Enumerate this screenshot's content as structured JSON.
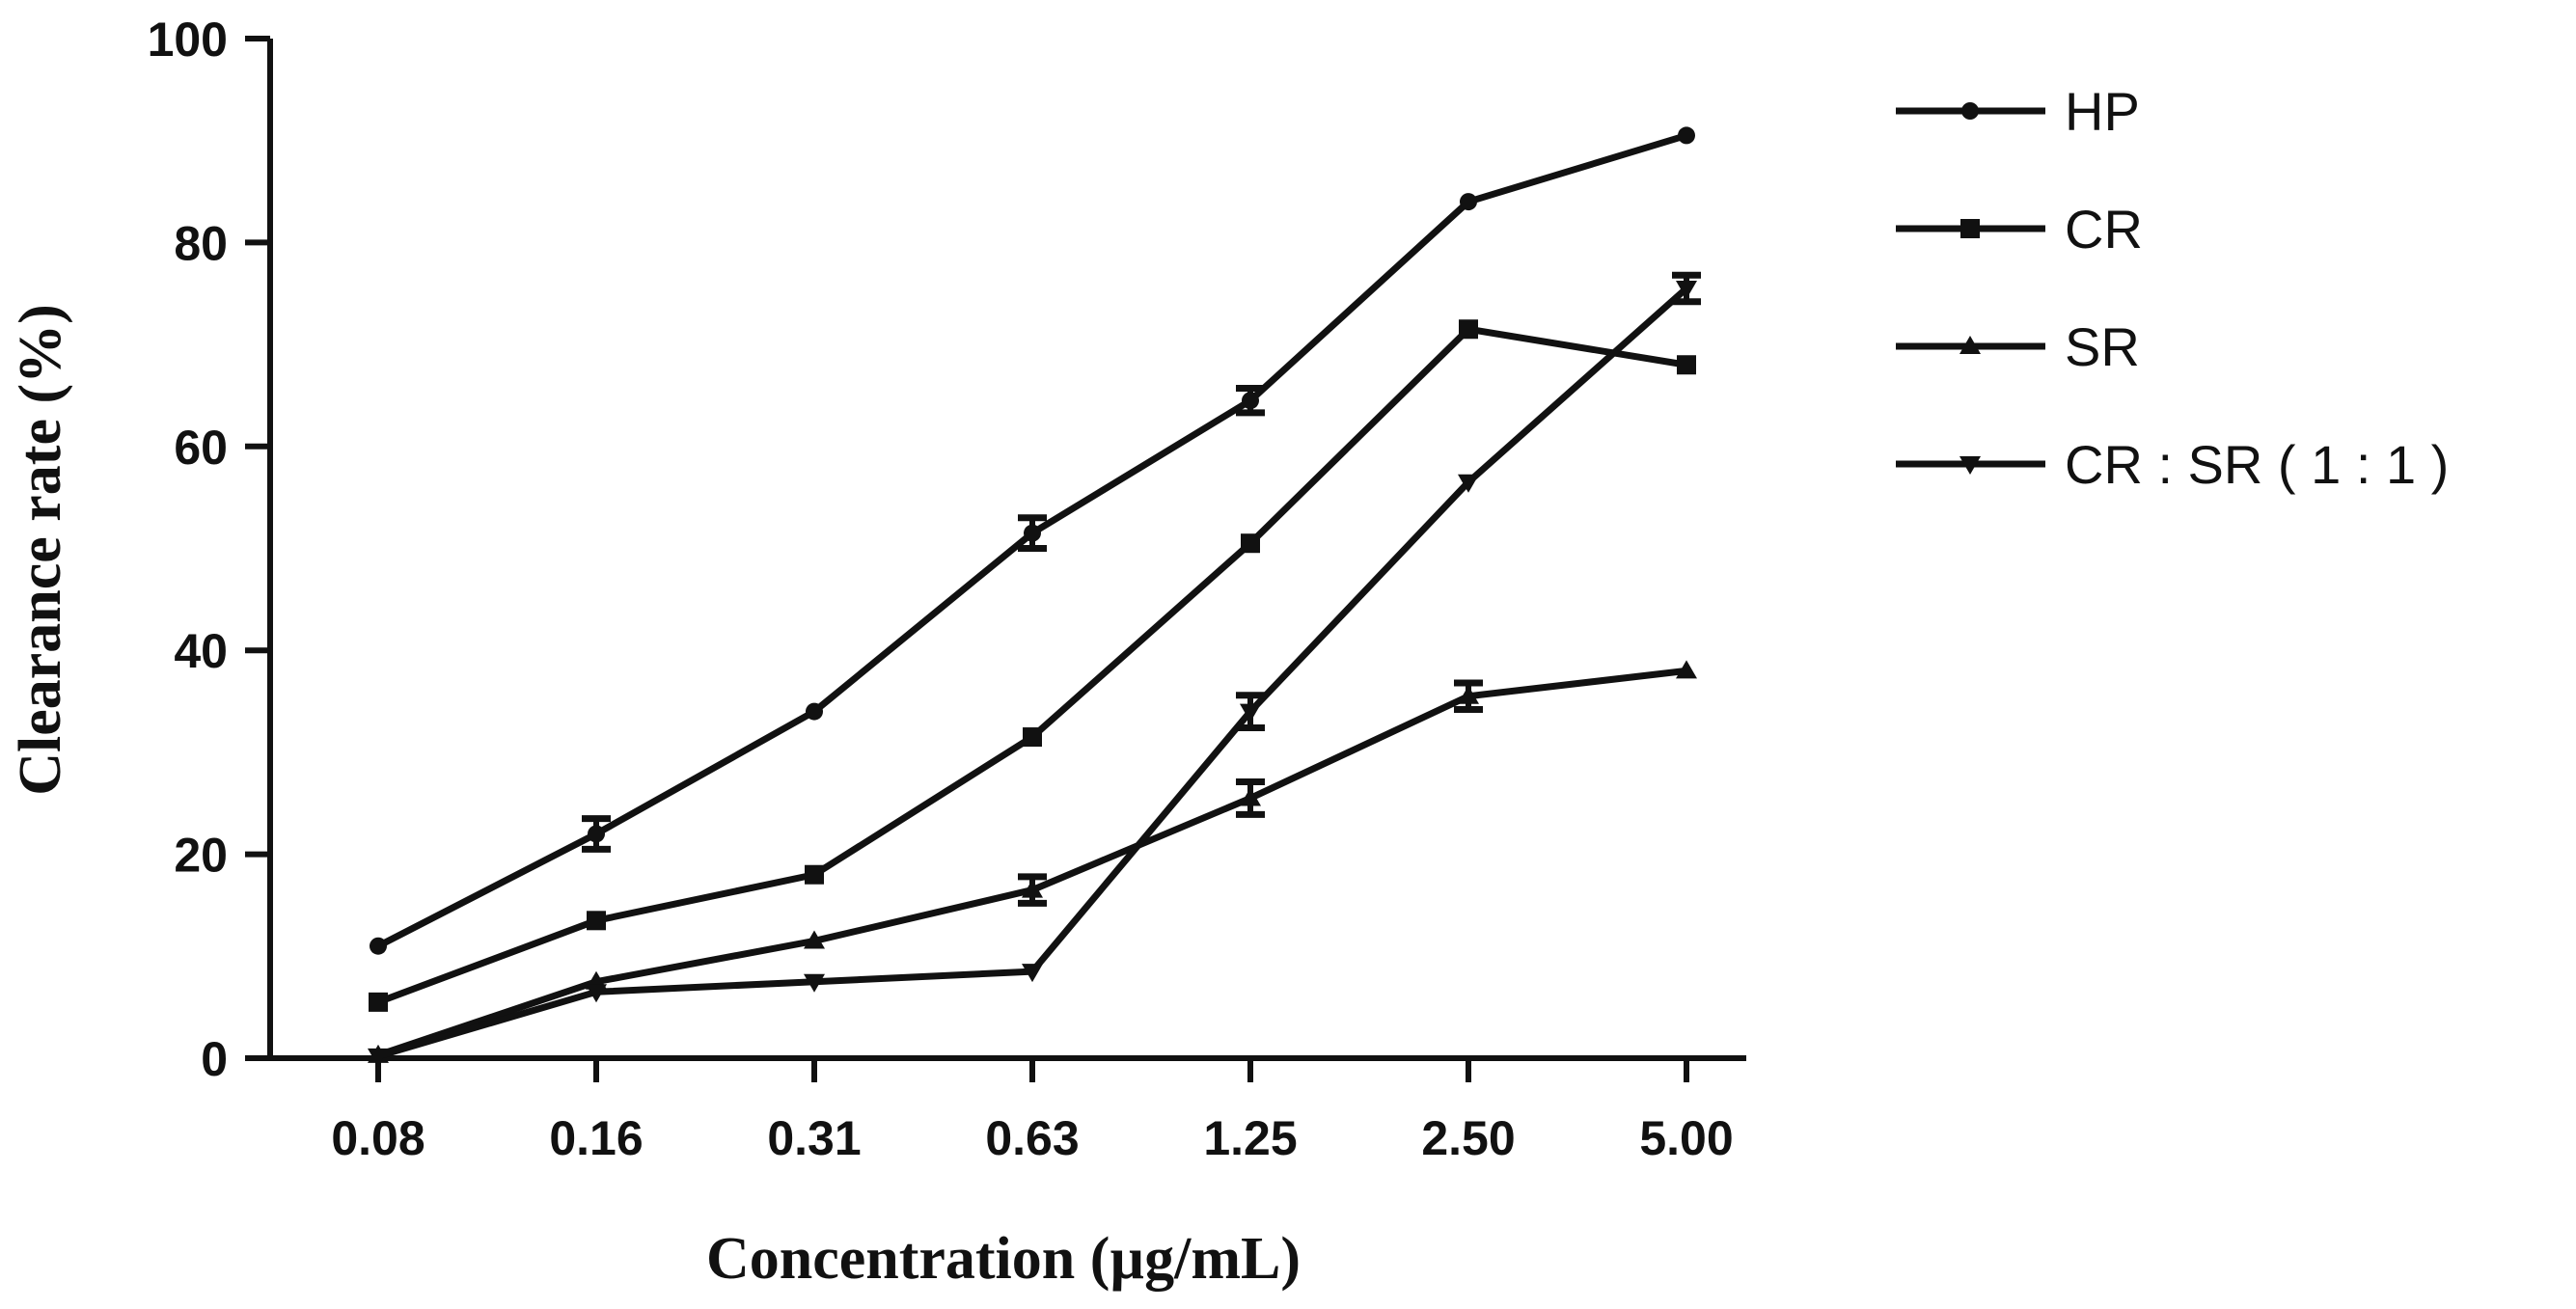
{
  "chart_data": {
    "type": "line",
    "xlabel": "Concentration (µg/mL)",
    "ylabel": "Clearance rate (%)",
    "categories": [
      "0.08",
      "0.16",
      "0.31",
      "0.63",
      "1.25",
      "2.50",
      "5.00"
    ],
    "ylim": [
      0,
      100
    ],
    "yticks": [
      0,
      20,
      40,
      60,
      80,
      100
    ],
    "legend_position": "right",
    "series": [
      {
        "name": "HP",
        "marker": "circle",
        "values": [
          11,
          22,
          34,
          51.5,
          64.5,
          84,
          90.5
        ],
        "errors": [
          0,
          1.5,
          0,
          1.5,
          1.2,
          0,
          0
        ]
      },
      {
        "name": "CR",
        "marker": "square",
        "values": [
          5.5,
          13.5,
          18,
          31.5,
          50.5,
          71.5,
          68
        ],
        "errors": [
          0,
          0,
          0,
          0,
          0,
          0,
          0
        ]
      },
      {
        "name": "SR",
        "marker": "triangle-up",
        "values": [
          0.3,
          7.5,
          11.5,
          16.5,
          25.5,
          35.5,
          38
        ],
        "errors": [
          0,
          0,
          0,
          1.3,
          1.6,
          1.3,
          0
        ]
      },
      {
        "name": "CR : SR ( 1 : 1 )",
        "marker": "triangle-down",
        "values": [
          0.2,
          6.5,
          7.5,
          8.5,
          34,
          56.5,
          75.5
        ],
        "errors": [
          0,
          0,
          0,
          0,
          1.6,
          0,
          1.3
        ]
      }
    ]
  }
}
